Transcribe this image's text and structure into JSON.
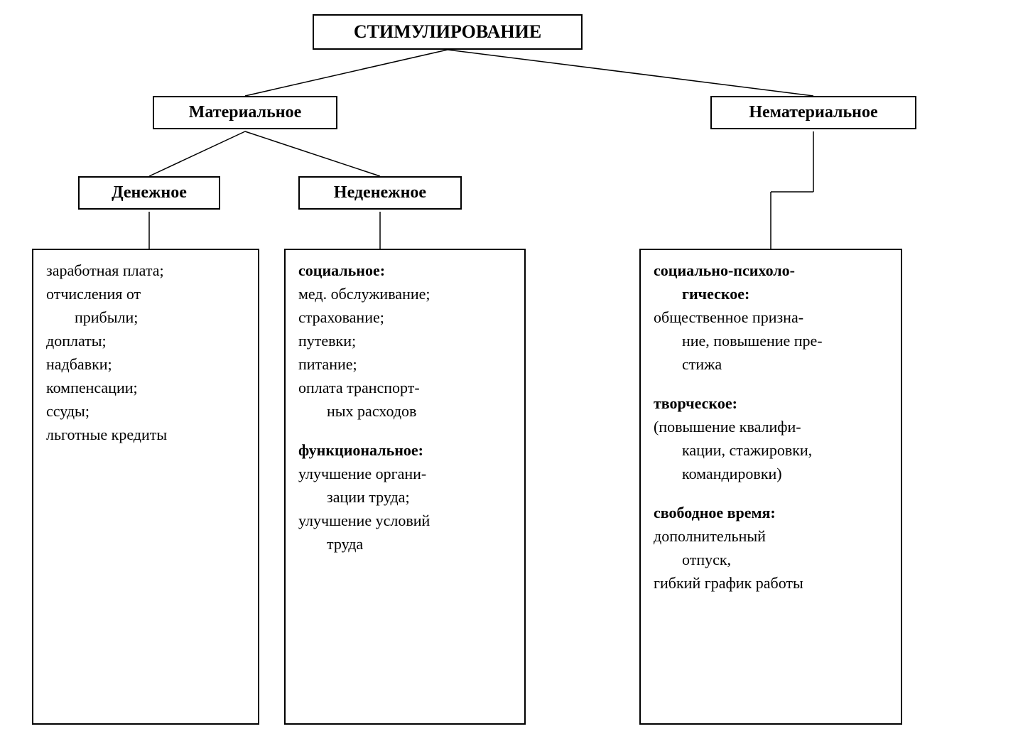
{
  "diagram": {
    "type": "tree",
    "background_color": "#ffffff",
    "border_color": "#000000",
    "font_family": "serif",
    "title_fontsize": 26,
    "sub_fontsize": 24,
    "content_fontsize": 22,
    "root": {
      "label": "СТИМУЛИРОВАНИЕ"
    },
    "level2": {
      "material": {
        "label": "Материальное"
      },
      "immaterial": {
        "label": "Нематериальное"
      }
    },
    "level3": {
      "monetary": {
        "label": "Денежное"
      },
      "nonmonetary": {
        "label": "Неденежное"
      }
    },
    "content": {
      "monetary": {
        "items": [
          "заработная плата;",
          "отчисления от",
          "прибыли;",
          "доплаты;",
          "надбавки;",
          "компенсации;",
          "ссуды;",
          "льготные кредиты"
        ],
        "indent_indices": [
          2
        ]
      },
      "nonmonetary": {
        "sections": [
          {
            "title": "социальное:",
            "lines": [
              "мед. обслуживание;",
              "страхование;",
              "путевки;",
              "питание;",
              "оплата транспорт-",
              "ных расходов"
            ],
            "indent_indices": [
              5
            ]
          },
          {
            "title": "функциональное:",
            "lines": [
              "улучшение органи-",
              "зации труда;",
              "улучшение условий",
              "труда"
            ],
            "indent_indices": [
              1,
              3
            ]
          }
        ]
      },
      "immaterial": {
        "sections": [
          {
            "title": "социально-психоло-",
            "title_cont": "гическое:",
            "lines": [
              "общественное призна-",
              "ние, повышение пре-",
              "стижа"
            ],
            "indent_indices": [
              1,
              2
            ]
          },
          {
            "title": "творческое:",
            "lines": [
              "(повышение квалифи-",
              "кации, стажировки,",
              "командировки)"
            ],
            "indent_indices": [
              1,
              2
            ]
          },
          {
            "title": "свободное время:",
            "lines": [
              "дополнительный",
              "отпуск,",
              "гибкий график работы"
            ],
            "indent_indices": [
              1
            ]
          }
        ]
      }
    }
  }
}
